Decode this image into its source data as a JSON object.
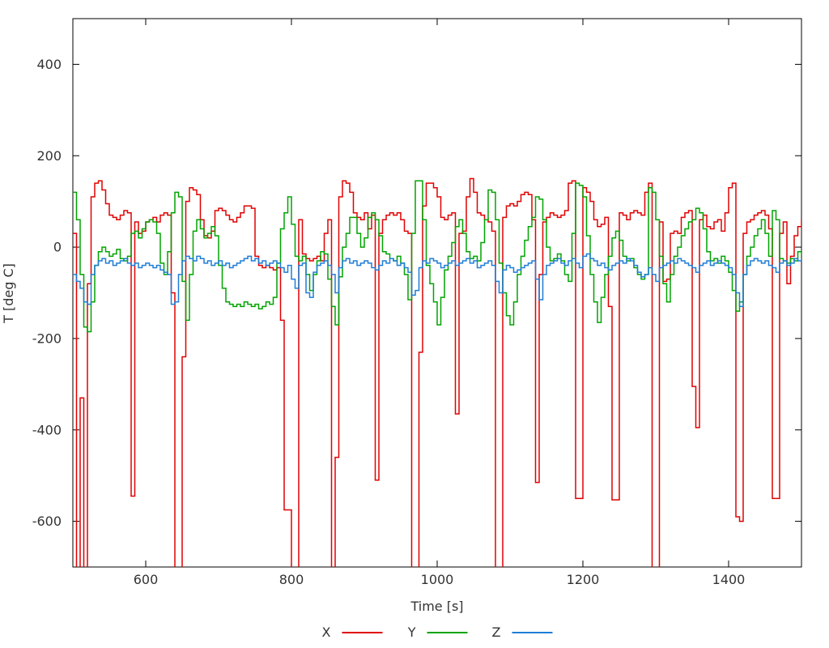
{
  "page": {
    "background": "#ffffff"
  },
  "chart_data": {
    "type": "line",
    "mode": "steps-post",
    "title": "",
    "xlabel": "Time [s]",
    "ylabel": "T [deg C]",
    "xlim": [
      500,
      1500
    ],
    "ylim": [
      -700,
      500
    ],
    "x_ticks": [
      600,
      800,
      1000,
      1200,
      1400
    ],
    "y_ticks": [
      400,
      200,
      0,
      -200,
      -400,
      -600
    ],
    "grid": false,
    "legend_position": "bottom-center",
    "axis_color": "#000000",
    "label_color": "#333333",
    "x_start": 500,
    "x_step": 5,
    "series": [
      {
        "name": "X",
        "color": "#e00000",
        "values": [
          30,
          -720,
          -330,
          -720,
          -80,
          110,
          140,
          145,
          125,
          95,
          70,
          65,
          60,
          70,
          80,
          75,
          -545,
          55,
          30,
          35,
          55,
          60,
          65,
          55,
          70,
          75,
          70,
          -100,
          -720,
          -720,
          -240,
          100,
          130,
          125,
          115,
          60,
          25,
          20,
          35,
          80,
          85,
          80,
          70,
          60,
          55,
          65,
          75,
          90,
          90,
          85,
          -20,
          -40,
          -45,
          -40,
          -45,
          -50,
          -45,
          -160,
          -575,
          -575,
          -720,
          -720,
          60,
          -15,
          -25,
          -30,
          -25,
          -20,
          -30,
          30,
          60,
          -720,
          -460,
          110,
          145,
          140,
          120,
          75,
          65,
          60,
          75,
          40,
          70,
          -510,
          30,
          60,
          70,
          75,
          70,
          75,
          60,
          35,
          30,
          -720,
          -720,
          -230,
          90,
          140,
          140,
          130,
          110,
          65,
          60,
          70,
          75,
          -365,
          30,
          35,
          110,
          150,
          120,
          75,
          70,
          60,
          55,
          35,
          -720,
          -720,
          65,
          90,
          95,
          90,
          100,
          115,
          120,
          115,
          60,
          -515,
          -60,
          55,
          65,
          75,
          70,
          65,
          70,
          80,
          140,
          145,
          -550,
          -550,
          130,
          120,
          100,
          60,
          45,
          50,
          65,
          -130,
          -553,
          -553,
          75,
          70,
          60,
          75,
          80,
          75,
          70,
          120,
          140,
          -720,
          -720,
          55,
          -75,
          -70,
          30,
          35,
          30,
          65,
          75,
          80,
          -305,
          -395,
          60,
          70,
          45,
          40,
          55,
          60,
          35,
          75,
          130,
          140,
          -590,
          -600,
          30,
          55,
          60,
          70,
          75,
          80,
          70,
          40,
          -550,
          -550,
          30,
          55,
          -80,
          -20,
          25,
          45,
          60
        ]
      },
      {
        "name": "Y",
        "color": "#00a400",
        "values": [
          120,
          60,
          -60,
          -175,
          -185,
          -120,
          -40,
          -10,
          0,
          -10,
          -20,
          -15,
          -5,
          -25,
          -30,
          -20,
          30,
          35,
          20,
          40,
          55,
          60,
          55,
          30,
          -35,
          -60,
          -10,
          75,
          120,
          110,
          -75,
          -160,
          -60,
          35,
          60,
          40,
          20,
          30,
          45,
          25,
          -40,
          -90,
          -120,
          -125,
          -130,
          -125,
          -130,
          -120,
          -125,
          -130,
          -125,
          -135,
          -130,
          -120,
          -125,
          -110,
          -35,
          40,
          75,
          110,
          50,
          -20,
          -30,
          -20,
          -60,
          -95,
          -60,
          -30,
          -10,
          -15,
          -70,
          -130,
          -170,
          -65,
          0,
          30,
          65,
          65,
          30,
          0,
          20,
          65,
          75,
          60,
          25,
          -10,
          -15,
          -25,
          -30,
          -20,
          -35,
          -60,
          -115,
          30,
          145,
          145,
          60,
          -40,
          -80,
          -120,
          -170,
          -110,
          -50,
          -20,
          10,
          45,
          60,
          30,
          -10,
          -25,
          -20,
          -30,
          10,
          60,
          125,
          120,
          60,
          -35,
          -100,
          -150,
          -170,
          -120,
          -60,
          -20,
          15,
          45,
          65,
          110,
          105,
          60,
          0,
          -30,
          -25,
          -15,
          -30,
          -60,
          -75,
          30,
          140,
          135,
          110,
          25,
          -60,
          -120,
          -165,
          -110,
          -60,
          -20,
          20,
          35,
          15,
          -20,
          -30,
          -25,
          -45,
          -60,
          -70,
          -60,
          130,
          120,
          60,
          -20,
          -80,
          -120,
          -60,
          -20,
          0,
          25,
          40,
          55,
          60,
          85,
          75,
          40,
          -10,
          -30,
          -25,
          -35,
          -20,
          -30,
          -55,
          -95,
          -140,
          -120,
          -60,
          -20,
          0,
          25,
          40,
          60,
          30,
          -20,
          80,
          60,
          -25,
          -30,
          -35,
          -25,
          -30,
          -10,
          -20
        ]
      },
      {
        "name": "Z",
        "color": "#1e7dd7",
        "values": [
          -60,
          -75,
          -90,
          -120,
          -125,
          -60,
          -40,
          -30,
          -25,
          -35,
          -30,
          -40,
          -35,
          -30,
          -25,
          -35,
          -40,
          -35,
          -45,
          -40,
          -35,
          -40,
          -45,
          -40,
          -50,
          -55,
          -60,
          -125,
          -120,
          -60,
          -30,
          -20,
          -25,
          -30,
          -20,
          -25,
          -35,
          -30,
          -40,
          -35,
          -30,
          -40,
          -35,
          -45,
          -40,
          -35,
          -30,
          -25,
          -20,
          -30,
          -25,
          -35,
          -30,
          -40,
          -35,
          -30,
          -35,
          -45,
          -55,
          -40,
          -70,
          -90,
          -40,
          -35,
          -100,
          -110,
          -55,
          -40,
          -35,
          -30,
          -40,
          -60,
          -100,
          -45,
          -30,
          -25,
          -35,
          -30,
          -40,
          -35,
          -30,
          -35,
          -45,
          -50,
          -40,
          -30,
          -35,
          -25,
          -30,
          -40,
          -35,
          -45,
          -55,
          -105,
          -95,
          -45,
          -30,
          -35,
          -25,
          -30,
          -35,
          -45,
          -40,
          -35,
          -30,
          -40,
          -35,
          -30,
          -25,
          -35,
          -30,
          -45,
          -40,
          -35,
          -30,
          -40,
          -75,
          -100,
          -50,
          -40,
          -45,
          -55,
          -50,
          -45,
          -40,
          -35,
          -30,
          -70,
          -115,
          -60,
          -40,
          -35,
          -30,
          -25,
          -35,
          -40,
          -30,
          -25,
          -35,
          -45,
          -20,
          -15,
          -25,
          -30,
          -40,
          -35,
          -45,
          -50,
          -40,
          -35,
          -30,
          -35,
          -25,
          -30,
          -40,
          -55,
          -65,
          -60,
          -45,
          -60,
          -75,
          -45,
          -40,
          -35,
          -30,
          -35,
          -25,
          -30,
          -35,
          -40,
          -45,
          -55,
          -40,
          -35,
          -30,
          -40,
          -35,
          -30,
          -35,
          -40,
          -45,
          -60,
          -100,
          -130,
          -60,
          -40,
          -30,
          -25,
          -30,
          -35,
          -30,
          -40,
          -45,
          -55,
          -35,
          -30,
          -40,
          -35,
          -25,
          -30,
          -25
        ]
      }
    ]
  }
}
